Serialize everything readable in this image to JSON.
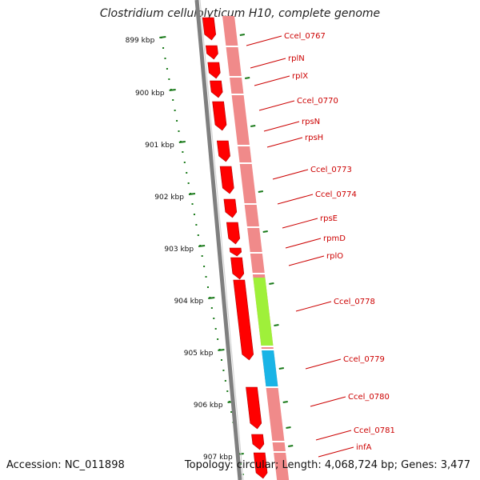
{
  "header": {
    "title": "Clostridium cellulolyticum H10, complete genome"
  },
  "footer": {
    "accession": "Accession: NC_011898",
    "topology": "Topology: circular; Length: 4,068,724 bp; Genes: 3,477"
  },
  "colors": {
    "cds_strand": "#ff0000",
    "gene_track": "#f08a8a",
    "highlight_green": "#9ff03a",
    "highlight_blue": "#19b4e6",
    "backbone": "#7f7f7f",
    "tick": "#1a7a1a",
    "label": "#cc0000"
  },
  "scale_labels": [
    "899 kbp",
    "900 kbp",
    "901 kbp",
    "902 kbp",
    "903 kbp",
    "904 kbp",
    "905 kbp",
    "906 kbp",
    "907 kbp"
  ],
  "genes": [
    "Ccel_0767",
    "rplN",
    "rplX",
    "Ccel_0770",
    "rpsN",
    "rpsH",
    "Ccel_0773",
    "Ccel_0774",
    "rpsE",
    "rpmD",
    "rplO",
    "Ccel_0778",
    "Ccel_0779",
    "Ccel_0780",
    "Ccel_0781",
    "infA"
  ]
}
